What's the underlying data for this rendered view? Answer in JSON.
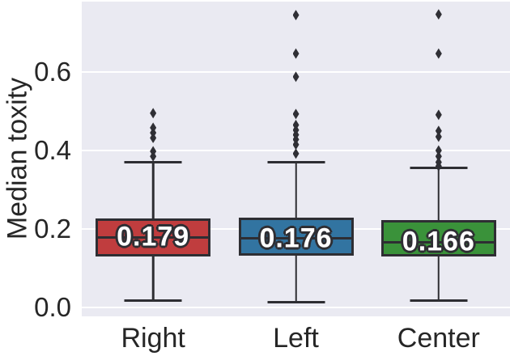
{
  "colors": {
    "plot_background": "#eaeaf2",
    "figure_background": "#ffffff",
    "gridline": "#ffffff",
    "edge": "#2e2e33",
    "text": "#262626",
    "right_box": "#c03d3e",
    "left_box": "#3274a1",
    "center_box": "#3a923a"
  },
  "chart_data": {
    "type": "box",
    "ylabel": "Median toxity",
    "xlabel": "",
    "categories": [
      "Right",
      "Left",
      "Center"
    ],
    "ytick_values": [
      0.0,
      0.2,
      0.4,
      0.6
    ],
    "ytick_labels": [
      "0.0",
      "0.2",
      "0.4",
      "0.6"
    ],
    "ylim": [
      -0.0227,
      0.7794
    ],
    "grid": true,
    "legend": "none",
    "series": [
      {
        "category": "Right",
        "color": "#c03d3e",
        "median": 0.179,
        "median_label": "0.179",
        "q1": 0.13,
        "q3": 0.227,
        "whisker_low": 0.017,
        "whisker_high": 0.371,
        "outliers": [
          0.495,
          0.458,
          0.445,
          0.432,
          0.398,
          0.385
        ]
      },
      {
        "category": "Left",
        "color": "#3274a1",
        "median": 0.176,
        "median_label": "0.176",
        "q1": 0.132,
        "q3": 0.229,
        "whisker_low": 0.013,
        "whisker_high": 0.371,
        "outliers": [
          0.745,
          0.647,
          0.588,
          0.493,
          0.465,
          0.452,
          0.44,
          0.428,
          0.415,
          0.392
        ]
      },
      {
        "category": "Center",
        "color": "#3a923a",
        "median": 0.166,
        "median_label": "0.166",
        "q1": 0.13,
        "q3": 0.223,
        "whisker_low": 0.017,
        "whisker_high": 0.355,
        "outliers": [
          0.747,
          0.647,
          0.491,
          0.45,
          0.435,
          0.4,
          0.385,
          0.37,
          0.36
        ]
      }
    ]
  }
}
